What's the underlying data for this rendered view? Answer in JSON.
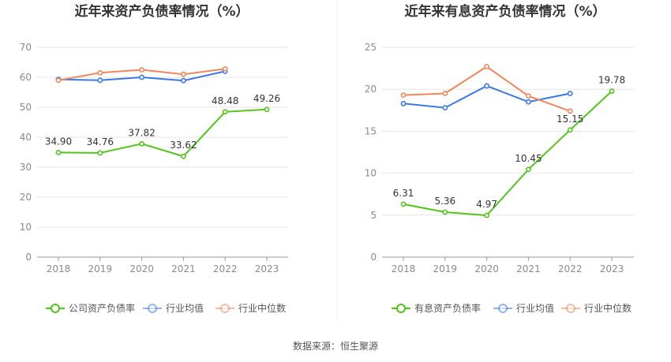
{
  "source_label": "数据来源：恒生聚源",
  "chart_data": [
    {
      "type": "line",
      "title": "近年来资产负债率情况（%）",
      "categories": [
        "2018",
        "2019",
        "2020",
        "2021",
        "2022",
        "2023"
      ],
      "ylim": [
        0,
        70
      ],
      "yticks": [
        0,
        10,
        20,
        30,
        40,
        50,
        60,
        70
      ],
      "grid": true,
      "legend_position": "bottom",
      "series": [
        {
          "name": "公司资产负债率",
          "color": "#52c41a",
          "values": [
            34.9,
            34.76,
            37.82,
            33.62,
            48.48,
            49.26
          ],
          "labels": [
            "34.90",
            "34.76",
            "37.82",
            "33.62",
            "48.48",
            "49.26"
          ]
        },
        {
          "name": "行业均值",
          "color": "#3b78e7",
          "values": [
            59.3,
            59.0,
            60.0,
            58.9,
            62.0,
            null
          ]
        },
        {
          "name": "行业中位数",
          "color": "#f0865c",
          "values": [
            59.0,
            61.5,
            62.5,
            61.0,
            62.8,
            null
          ]
        }
      ]
    },
    {
      "type": "line",
      "title": "近年来有息资产负债率情况（%）",
      "categories": [
        "2018",
        "2019",
        "2020",
        "2021",
        "2022",
        "2023"
      ],
      "ylim": [
        0,
        25
      ],
      "yticks": [
        0,
        5,
        10,
        15,
        20,
        25
      ],
      "grid": true,
      "legend_position": "bottom",
      "series": [
        {
          "name": "有息资产负债率",
          "color": "#52c41a",
          "values": [
            6.31,
            5.36,
            4.97,
            10.45,
            15.15,
            19.78
          ],
          "labels": [
            "6.31",
            "5.36",
            "4.97",
            "10.45",
            "15.15",
            "19.78"
          ]
        },
        {
          "name": "行业均值",
          "color": "#3b78e7",
          "values": [
            18.3,
            17.8,
            20.4,
            18.5,
            19.5,
            null
          ]
        },
        {
          "name": "行业中位数",
          "color": "#f0865c",
          "values": [
            19.3,
            19.5,
            22.7,
            19.2,
            17.4,
            null
          ]
        }
      ]
    }
  ]
}
